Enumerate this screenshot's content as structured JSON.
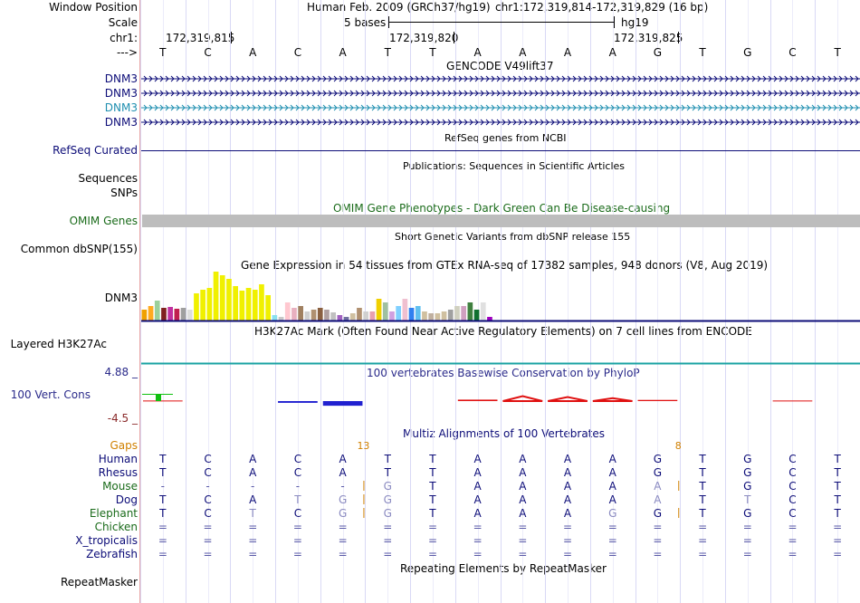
{
  "header": {
    "window_position_label": "Window Position",
    "assembly_text": "Human Feb. 2009 (GRCh37/hg19)",
    "position_text": "chr1:172,319,814-172,319,829 (16 bp)",
    "scale_label": "Scale",
    "scale_text": "5 bases",
    "scale_db": "hg19",
    "chrom_label": "chr1:",
    "coord_ticks": [
      "172,319,815",
      "172,319,820",
      "172,319,825"
    ],
    "strand_label": "--->"
  },
  "bases": [
    "T",
    "C",
    "A",
    "C",
    "A",
    "T",
    "T",
    "A",
    "A",
    "A",
    "A",
    "G",
    "T",
    "G",
    "C",
    "T"
  ],
  "gencode": {
    "title": "GENCODE V49lift37",
    "items": [
      {
        "label": "DNM3",
        "color": "#0c0c78"
      },
      {
        "label": "DNM3",
        "color": "#0c0c78"
      },
      {
        "label": "DNM3",
        "color": "#1f8fb0"
      },
      {
        "label": "DNM3",
        "color": "#0c0c78"
      }
    ]
  },
  "refseq": {
    "title": "RefSeq genes from NCBI",
    "label": "RefSeq Curated",
    "color": "#0c0c78"
  },
  "publications": {
    "title": "Publications: Sequences in Scientific Articles",
    "labels": [
      "Sequences",
      "SNPs"
    ]
  },
  "omim": {
    "title": "OMIM Gene Phenotypes - Dark Green Can Be Disease-causing",
    "label": "OMIM Genes",
    "color": "#1a6b1a",
    "bar_color": "#bdbdbd"
  },
  "dbsnp": {
    "title": "Short Genetic Variants from dbSNP release 155",
    "label": "Common dbSNP(155)"
  },
  "gtex": {
    "title": "Gene Expression in 54 tissues from GTEx RNA-seq of 17382 samples, 948 donors (V8, Aug 2019)",
    "label": "DNM3",
    "bar_heights": [
      12,
      16,
      22,
      14,
      15,
      13,
      14,
      12,
      30,
      34,
      36,
      54,
      50,
      46,
      38,
      33,
      36,
      34,
      40,
      28,
      6,
      4,
      20,
      14,
      16,
      10,
      12,
      14,
      12,
      9,
      6,
      4,
      8,
      14,
      10,
      10,
      24,
      20,
      10,
      16,
      24,
      14,
      16,
      10,
      8,
      8,
      10,
      12,
      16,
      16,
      20,
      12,
      20,
      4
    ],
    "bar_colors": [
      "#f0a000",
      "#ffaa20",
      "#9bd09b",
      "#802020",
      "#c0309f",
      "#c02050",
      "#9f9f9f",
      "#dddddd",
      "#f0f000",
      "#f0f000",
      "#f0f000",
      "#f0f000",
      "#f0f000",
      "#f0f000",
      "#f0f000",
      "#f0f000",
      "#f0f000",
      "#f0f000",
      "#f0f000",
      "#f0f000",
      "#8ae0f0",
      "#c8c8c8",
      "#ffc8d0",
      "#e8b0c0",
      "#a08060",
      "#d0d0d0",
      "#b09070",
      "#8a6040",
      "#b0a0a0",
      "#c0c0c0",
      "#a060c0",
      "#7070a0",
      "#d0c0a0",
      "#b09070",
      "#d0d0d0",
      "#e8a0b0",
      "#f0d000",
      "#a0c0a0",
      "#d0a0e0",
      "#80d0ff",
      "#f0c0d0",
      "#3080f0",
      "#60c0f0",
      "#d0c0a0",
      "#c0b0a0",
      "#d0c0a0",
      "#d0c0a0",
      "#a0a0a0",
      "#d0d0c0",
      "#d0a0c0",
      "#408040",
      "#107030",
      "#e0e0e0",
      "#a000c0"
    ]
  },
  "h3k27ac": {
    "title": "H3K27Ac Mark (Often Found Near Active Regulatory Elements) on 7 cell lines from ENCODE",
    "label": "Layered H3K27Ac"
  },
  "phylop": {
    "title": "100 vertebrates Basewise Conservation by PhyloP",
    "label": "100 Vert. Cons",
    "ymax": "4.88 _",
    "ymin": "-4.5 _",
    "values": [
      0.2,
      0.0,
      0.0,
      -0.6,
      -1.6,
      0.0,
      0.0,
      0.5,
      1.7,
      1.4,
      1.0,
      0.4,
      0.0,
      0.0,
      0.2,
      0.0
    ],
    "label_color": "#2a2a8a"
  },
  "multiz": {
    "title": "Multiz Alignments of 100 Vertebrates",
    "gaps_label": "Gaps",
    "gap_counts": [
      {
        "after": 4,
        "value": "13"
      },
      {
        "after": 11,
        "value": "8"
      }
    ],
    "species": [
      {
        "name": "Human",
        "bases": [
          "T",
          "C",
          "A",
          "C",
          "A",
          "T",
          "T",
          "A",
          "A",
          "A",
          "A",
          "G",
          "T",
          "G",
          "C",
          "T"
        ]
      },
      {
        "name": "Rhesus",
        "bases": [
          "T",
          "C",
          "A",
          "C",
          "A",
          "T",
          "T",
          "A",
          "A",
          "A",
          "A",
          "G",
          "T",
          "G",
          "C",
          "T"
        ]
      },
      {
        "name": "Mouse",
        "bases": [
          "-",
          "-",
          "-",
          "-",
          "-",
          "G",
          "T",
          "A",
          "A",
          "A",
          "A",
          "A",
          "T",
          "G",
          "C",
          "T"
        ]
      },
      {
        "name": "Dog",
        "bases": [
          "T",
          "C",
          "A",
          "T",
          "G",
          "G",
          "T",
          "A",
          "A",
          "A",
          "A",
          "A",
          "T",
          "T",
          "C",
          "T"
        ]
      },
      {
        "name": "Elephant",
        "bases": [
          "T",
          "C",
          "T",
          "C",
          "G",
          "G",
          "T",
          "A",
          "A",
          "A",
          "G",
          "G",
          "T",
          "G",
          "C",
          "T"
        ]
      },
      {
        "name": "Chicken",
        "bases": [
          "=",
          "=",
          "=",
          "=",
          "=",
          "=",
          "=",
          "=",
          "=",
          "=",
          "=",
          "=",
          "=",
          "=",
          "=",
          "="
        ]
      },
      {
        "name": "X_tropicalis",
        "bases": [
          "=",
          "=",
          "=",
          "=",
          "=",
          "=",
          "=",
          "=",
          "=",
          "=",
          "=",
          "=",
          "=",
          "=",
          "=",
          "="
        ]
      },
      {
        "name": "Zebrafish",
        "bases": [
          "=",
          "=",
          "=",
          "=",
          "=",
          "=",
          "=",
          "=",
          "=",
          "=",
          "=",
          "=",
          "=",
          "=",
          "=",
          "="
        ]
      }
    ]
  },
  "repeatmasker": {
    "title": "Repeating Elements by RepeatMasker",
    "label": "RepeatMasker"
  }
}
